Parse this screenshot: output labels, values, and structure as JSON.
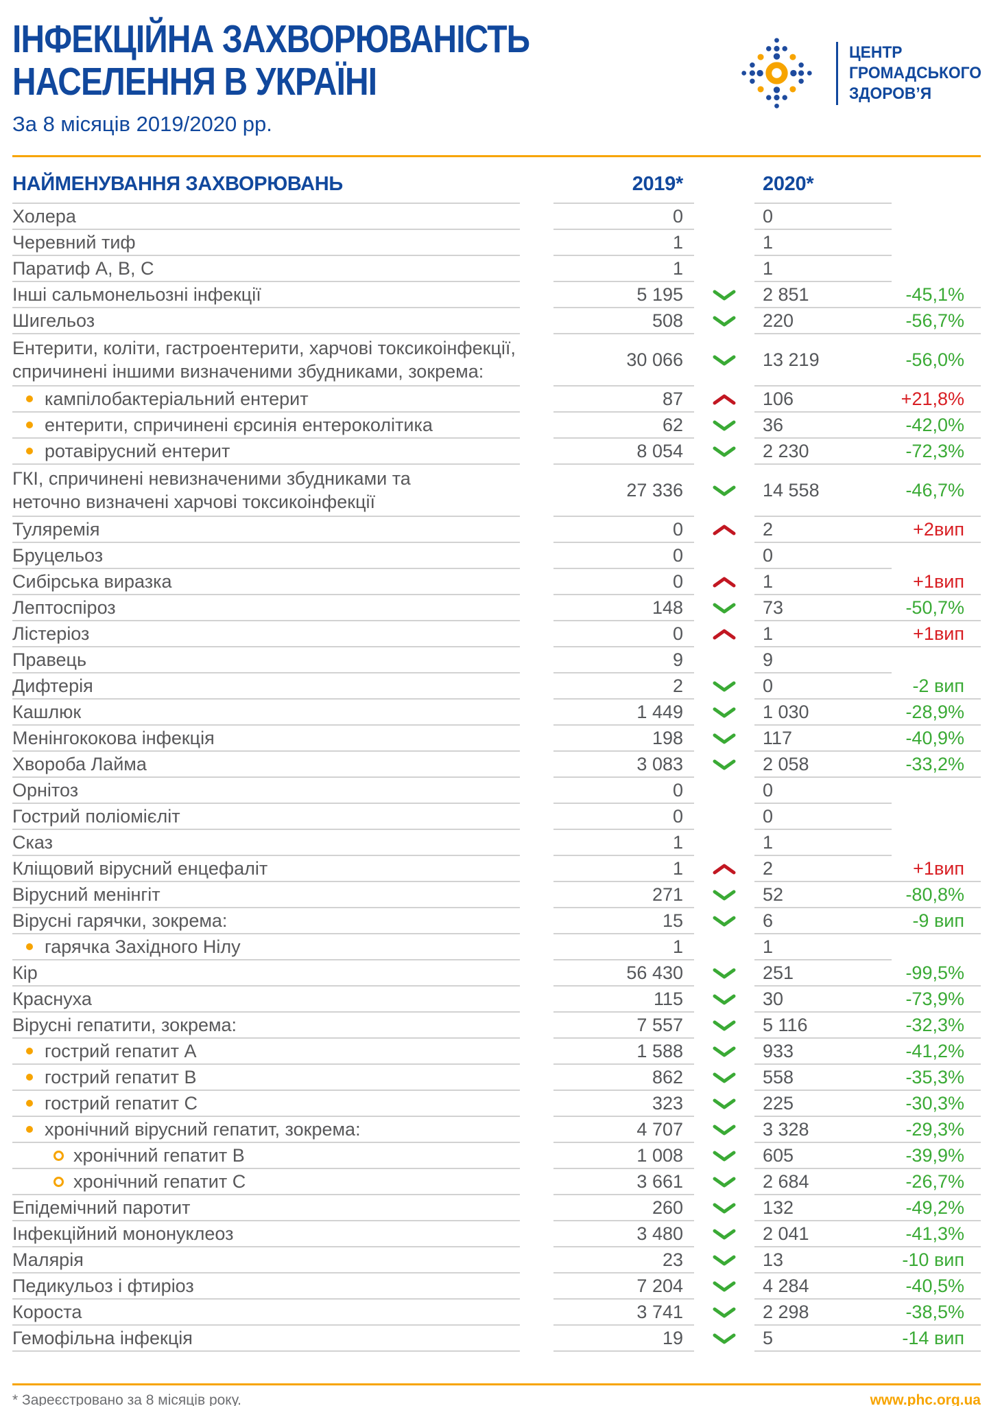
{
  "header": {
    "title_line1": "ІНФЕКЦІЙНА ЗАХВОРЮВАНІСТЬ",
    "title_line2": "НАСЕЛЕННЯ В УКРАЇНІ",
    "subtitle": "За 8 місяців 2019/2020 рр.",
    "logo_lines": [
      "ЦЕНТР",
      "ГРОМАДСЬКОГО",
      "ЗДОРОВ’Я"
    ]
  },
  "table": {
    "col_name": "НАЙМЕНУВАННЯ ЗАХВОРЮВАНЬ",
    "col_2019": "2019*",
    "col_2020": "2020*",
    "rows": [
      {
        "name": "Холера",
        "indent": 0,
        "v2019": "0",
        "trend": "",
        "v2020": "0",
        "change": ""
      },
      {
        "name": "Черевний тиф",
        "indent": 0,
        "v2019": "1",
        "trend": "",
        "v2020": "1",
        "change": ""
      },
      {
        "name": "Паратиф А, В, С",
        "indent": 0,
        "v2019": "1",
        "trend": "",
        "v2020": "1",
        "change": ""
      },
      {
        "name": "Інші сальмонельозні інфекції",
        "indent": 0,
        "v2019": "5 195",
        "trend": "down",
        "v2020": "2 851",
        "change": "-45,1%"
      },
      {
        "name": "Шигельоз",
        "indent": 0,
        "v2019": "508",
        "trend": "down",
        "v2020": "220",
        "change": "-56,7%"
      },
      {
        "name": "Ентерити, коліти, гастроентерити, харчові токсикоінфекції,\nспричинені іншими визначеними збудниками, зокрема:",
        "indent": 0,
        "v2019": "30 066",
        "trend": "down",
        "v2020": "13 219",
        "change": "-56,0%"
      },
      {
        "name": "кампілобактеріальний ентерит",
        "indent": 1,
        "v2019": "87",
        "trend": "up",
        "v2020": "106",
        "change": "+21,8%"
      },
      {
        "name": "ентерити, спричинені єрсинія ентероколітика",
        "indent": 1,
        "v2019": "62",
        "trend": "down",
        "v2020": "36",
        "change": "-42,0%"
      },
      {
        "name": "ротавірусний ентерит",
        "indent": 1,
        "v2019": "8 054",
        "trend": "down",
        "v2020": "2 230",
        "change": "-72,3%"
      },
      {
        "name": "ГКІ, спричинені невизначеними збудниками та\nнеточно визначені харчові токсикоінфекції",
        "indent": 0,
        "v2019": "27 336",
        "trend": "down",
        "v2020": "14 558",
        "change": "-46,7%"
      },
      {
        "name": "Туляремія",
        "indent": 0,
        "v2019": "0",
        "trend": "up",
        "v2020": "2",
        "change": "+2вип"
      },
      {
        "name": "Бруцельоз",
        "indent": 0,
        "v2019": "0",
        "trend": "",
        "v2020": "0",
        "change": ""
      },
      {
        "name": "Сибірська виразка",
        "indent": 0,
        "v2019": "0",
        "trend": "up",
        "v2020": "1",
        "change": "+1вип"
      },
      {
        "name": "Лептоспіроз",
        "indent": 0,
        "v2019": "148",
        "trend": "down",
        "v2020": "73",
        "change": "-50,7%"
      },
      {
        "name": "Лістеріоз",
        "indent": 0,
        "v2019": "0",
        "trend": "up",
        "v2020": "1",
        "change": "+1вип"
      },
      {
        "name": "Правець",
        "indent": 0,
        "v2019": "9",
        "trend": "",
        "v2020": "9",
        "change": ""
      },
      {
        "name": "Дифтерія",
        "indent": 0,
        "v2019": "2",
        "trend": "down",
        "v2020": "0",
        "change": "-2 вип"
      },
      {
        "name": "Кашлюк",
        "indent": 0,
        "v2019": "1 449",
        "trend": "down",
        "v2020": "1 030",
        "change": "-28,9%"
      },
      {
        "name": "Менінгококова інфекція",
        "indent": 0,
        "v2019": "198",
        "trend": "down",
        "v2020": "117",
        "change": "-40,9%"
      },
      {
        "name": "Хвороба Лайма",
        "indent": 0,
        "v2019": "3 083",
        "trend": "down",
        "v2020": "2 058",
        "change": "-33,2%"
      },
      {
        "name": "Орнітоз",
        "indent": 0,
        "v2019": "0",
        "trend": "",
        "v2020": "0",
        "change": ""
      },
      {
        "name": "Гострий поліомієліт",
        "indent": 0,
        "v2019": "0",
        "trend": "",
        "v2020": "0",
        "change": ""
      },
      {
        "name": "Сказ",
        "indent": 0,
        "v2019": "1",
        "trend": "",
        "v2020": "1",
        "change": ""
      },
      {
        "name": "Кліщовий вірусний енцефаліт",
        "indent": 0,
        "v2019": "1",
        "trend": "up",
        "v2020": "2",
        "change": "+1вип"
      },
      {
        "name": "Вірусний менінгіт",
        "indent": 0,
        "v2019": "271",
        "trend": "down",
        "v2020": "52",
        "change": "-80,8%"
      },
      {
        "name": "Вірусні гарячки, зокрема:",
        "indent": 0,
        "v2019": "15",
        "trend": "down",
        "v2020": "6",
        "change": "-9 вип"
      },
      {
        "name": "гарячка Західного Нілу",
        "indent": 1,
        "v2019": "1",
        "trend": "",
        "v2020": "1",
        "change": ""
      },
      {
        "name": "Кір",
        "indent": 0,
        "v2019": "56 430",
        "trend": "down",
        "v2020": "251",
        "change": "-99,5%"
      },
      {
        "name": "Краснуха",
        "indent": 0,
        "v2019": "115",
        "trend": "down",
        "v2020": "30",
        "change": "-73,9%"
      },
      {
        "name": "Вірусні гепатити, зокрема:",
        "indent": 0,
        "v2019": "7 557",
        "trend": "down",
        "v2020": "5 116",
        "change": "-32,3%"
      },
      {
        "name": "гострий гепатит А",
        "indent": 1,
        "v2019": "1 588",
        "trend": "down",
        "v2020": "933",
        "change": "-41,2%"
      },
      {
        "name": "гострий гепатит В",
        "indent": 1,
        "v2019": "862",
        "trend": "down",
        "v2020": "558",
        "change": "-35,3%"
      },
      {
        "name": "гострий гепатит С",
        "indent": 1,
        "v2019": "323",
        "trend": "down",
        "v2020": "225",
        "change": "-30,3%"
      },
      {
        "name": "хронічний вірусний гепатит, зокрема:",
        "indent": 1,
        "v2019": "4 707",
        "trend": "down",
        "v2020": "3 328",
        "change": "-29,3%"
      },
      {
        "name": "хронічний гепатит В",
        "indent": 2,
        "v2019": "1 008",
        "trend": "down",
        "v2020": "605",
        "change": "-39,9%"
      },
      {
        "name": "хронічний гепатит С",
        "indent": 2,
        "v2019": "3 661",
        "trend": "down",
        "v2020": "2 684",
        "change": "-26,7%"
      },
      {
        "name": "Епідемічний паротит",
        "indent": 0,
        "v2019": "260",
        "trend": "down",
        "v2020": "132",
        "change": "-49,2%"
      },
      {
        "name": "Інфекційний мононуклеоз",
        "indent": 0,
        "v2019": "3 480",
        "trend": "down",
        "v2020": "2 041",
        "change": "-41,3%"
      },
      {
        "name": "Малярія",
        "indent": 0,
        "v2019": "23",
        "trend": "down",
        "v2020": "13",
        "change": "-10 вип"
      },
      {
        "name": "Педикульоз і фтиріоз",
        "indent": 0,
        "v2019": "7 204",
        "trend": "down",
        "v2020": "4 284",
        "change": "-40,5%"
      },
      {
        "name": "Короста",
        "indent": 0,
        "v2019": "3 741",
        "trend": "down",
        "v2020": "2 298",
        "change": "-38,5%"
      },
      {
        "name": "Гемофільна інфекція",
        "indent": 0,
        "v2019": "19",
        "trend": "down",
        "v2020": "5",
        "change": "-14 вип"
      }
    ]
  },
  "footer": {
    "note": "* Зареєстровано за 8 місяців року.",
    "site": "www.phc.org.ua"
  },
  "colors": {
    "primary_blue": "#11489d",
    "accent_orange": "#f7a400",
    "positive_green": "#3aaa35",
    "negative_red": "#d81e23",
    "red_arrow": "#c21722",
    "text_gray": "#58585a",
    "line_gray": "#d2d2d2"
  }
}
